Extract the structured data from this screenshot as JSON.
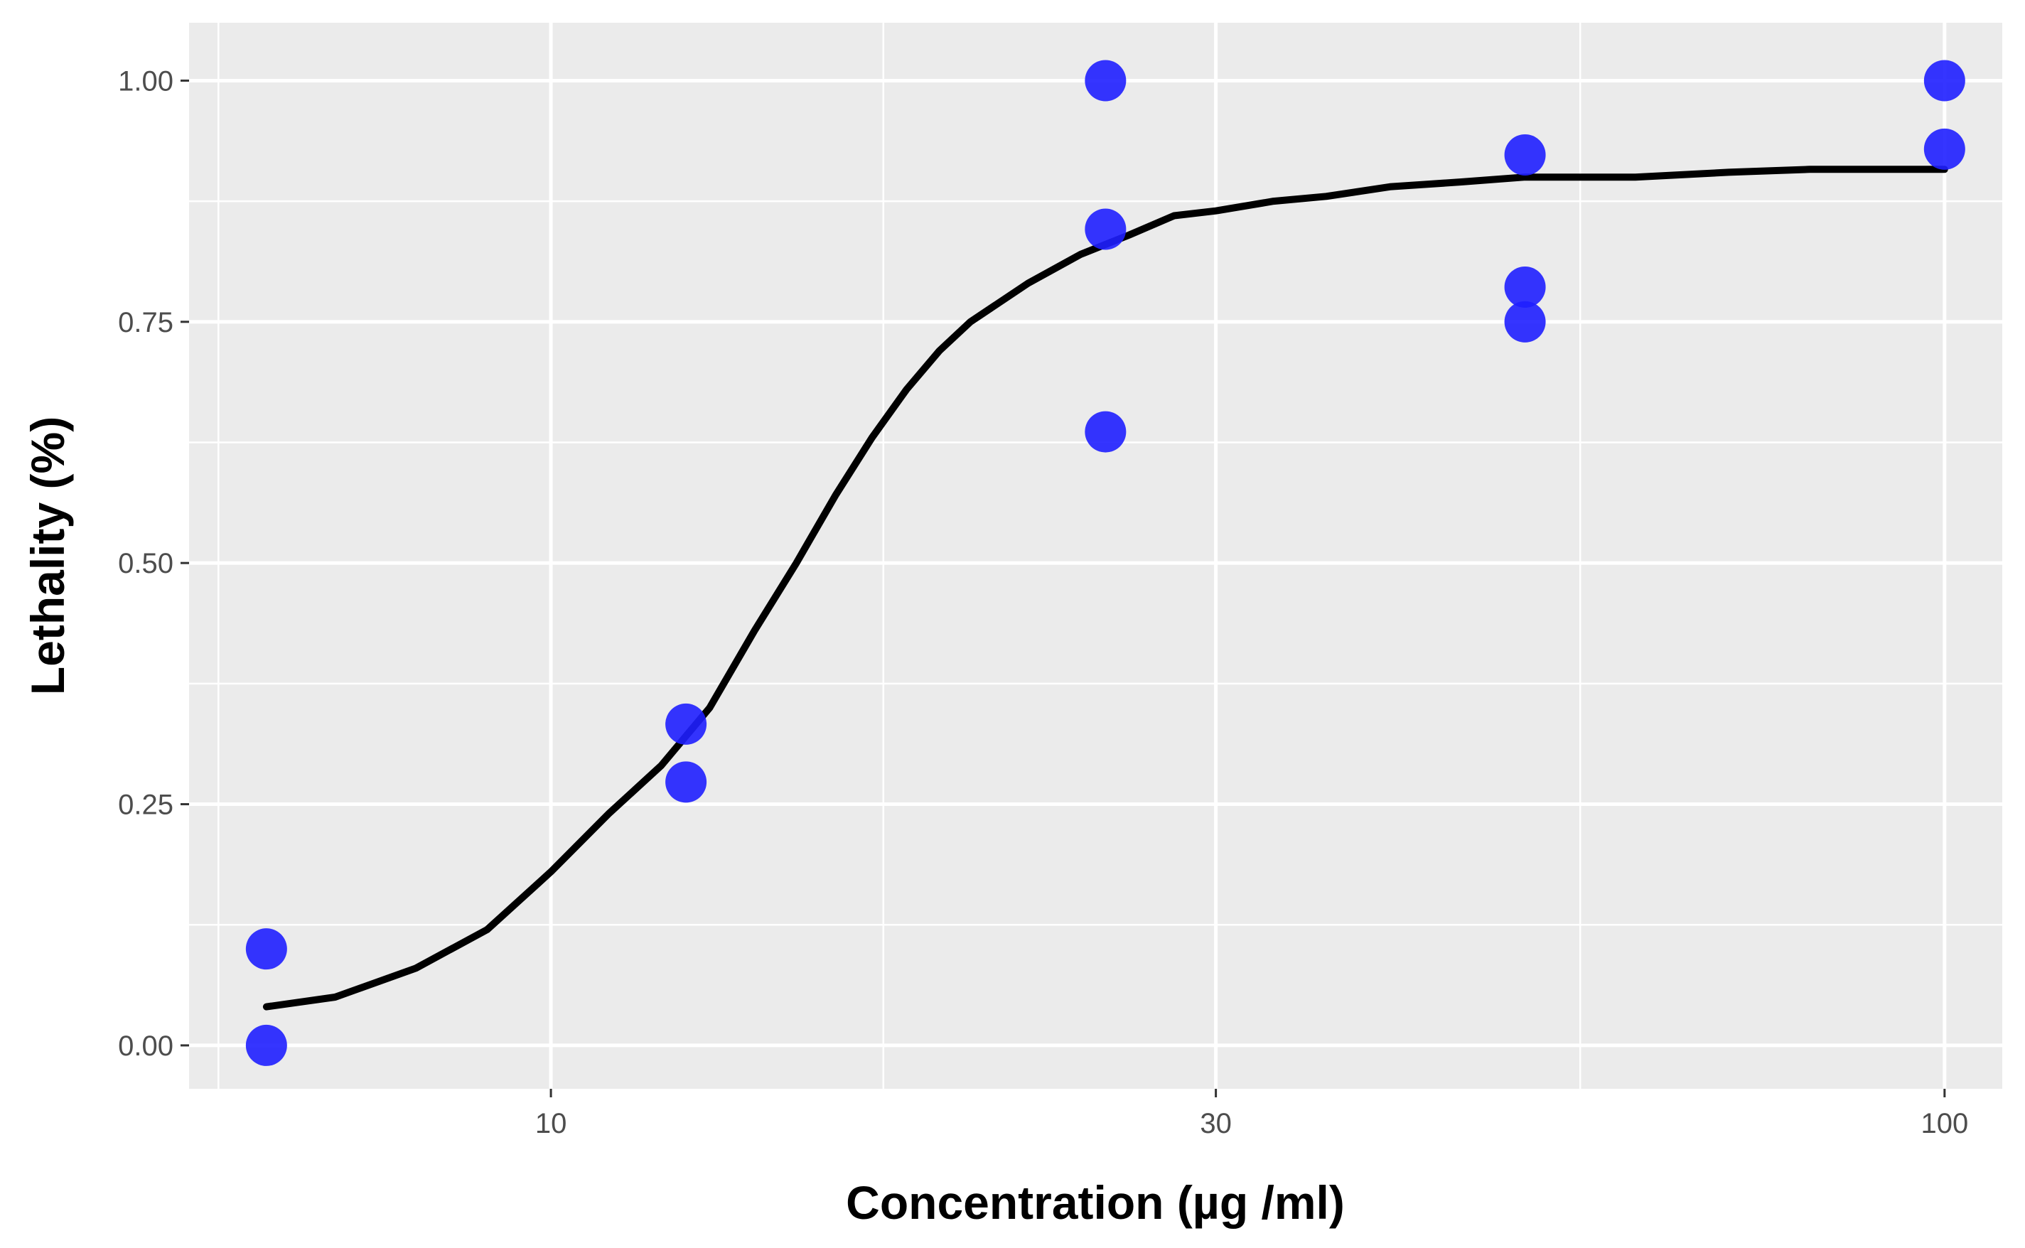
{
  "chart_data": {
    "type": "scatter",
    "title": "",
    "xlabel": "Concentration (µg /ml)",
    "ylabel": "Lethality (%)",
    "x_scale": "log10",
    "xlim": [
      5.5,
      110
    ],
    "ylim": [
      -0.045,
      1.06
    ],
    "x_ticks": [
      10,
      30,
      100
    ],
    "x_tick_labels": [
      "10",
      "30",
      "100"
    ],
    "y_ticks": [
      0.0,
      0.25,
      0.5,
      0.75,
      1.0
    ],
    "y_tick_labels": [
      "0.00",
      "0.25",
      "0.50",
      "0.75",
      "1.00"
    ],
    "grid": true,
    "legend": "none",
    "colors": {
      "panel": "#ebebeb",
      "grid": "#ffffff",
      "points": "#1f1fff",
      "fit_line": "#000000"
    },
    "points": [
      {
        "x": 6.25,
        "y": 0.1
      },
      {
        "x": 6.25,
        "y": 0.0
      },
      {
        "x": 12.5,
        "y": 0.333
      },
      {
        "x": 12.5,
        "y": 0.273
      },
      {
        "x": 25,
        "y": 1.0
      },
      {
        "x": 25,
        "y": 0.846
      },
      {
        "x": 25,
        "y": 0.636
      },
      {
        "x": 50,
        "y": 0.923
      },
      {
        "x": 50,
        "y": 0.786
      },
      {
        "x": 50,
        "y": 0.75
      },
      {
        "x": 100,
        "y": 1.0
      },
      {
        "x": 100,
        "y": 0.929
      }
    ],
    "fit_curve": {
      "x": [
        6.25,
        7,
        8,
        9,
        10,
        11,
        12,
        13,
        14,
        15,
        16,
        17,
        18,
        19,
        20,
        22,
        24,
        26,
        28,
        30,
        33,
        36,
        40,
        45,
        50,
        60,
        70,
        80,
        90,
        100
      ],
      "y": [
        0.04,
        0.05,
        0.08,
        0.12,
        0.18,
        0.24,
        0.29,
        0.35,
        0.43,
        0.5,
        0.57,
        0.63,
        0.68,
        0.72,
        0.75,
        0.79,
        0.82,
        0.84,
        0.86,
        0.865,
        0.875,
        0.88,
        0.89,
        0.895,
        0.9,
        0.9,
        0.905,
        0.908,
        0.908,
        0.908
      ]
    }
  }
}
